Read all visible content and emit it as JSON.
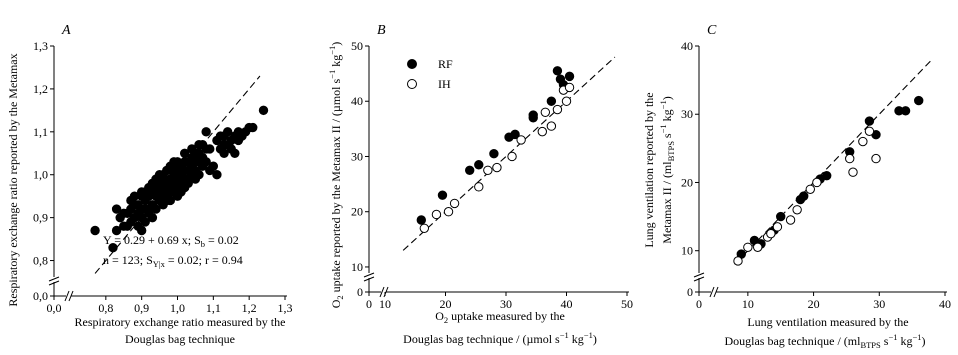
{
  "chart_data": [
    {
      "type": "scatter",
      "panel": "A",
      "xlabel": [
        "Respiratory exchange ratio measured by the",
        "Douglas bag technique"
      ],
      "ylabel": "Respiratory exchange ratio reported by the Metamax",
      "xlim": [
        0.7,
        1.3
      ],
      "ylim": [
        0.75,
        1.3
      ],
      "xticks": [
        0.8,
        0.9,
        1.0,
        1.1,
        1.2,
        1.3
      ],
      "yticks": [
        0.8,
        0.9,
        1.0,
        1.1,
        1.2,
        1.3
      ],
      "xtick_labels": [
        "0,8",
        "0,9",
        "1,0",
        "1,1",
        "1,2",
        "1,3"
      ],
      "ytick_labels": [
        "0,8",
        "0,9",
        "1,0",
        "1,1",
        "1,2",
        "1,3"
      ],
      "origin_x_label": "0,0",
      "origin_y_label": "0,0",
      "axis_break": true,
      "identity_line": [
        [
          0.77,
          0.77
        ],
        [
          1.23,
          1.23
        ]
      ],
      "annotation": {
        "line1": {
          "pre": "Y = 0.29 + 0.69 x; S",
          "sub": "b",
          "post": " = 0.02"
        },
        "line2": {
          "pre": "n = 123; S",
          "sub": "Y|x",
          "post": " = 0.02; r = 0.94"
        }
      },
      "series": [
        {
          "marker": "filled",
          "points": [
            [
              0.77,
              0.87
            ],
            [
              0.82,
              0.83
            ],
            [
              0.83,
              0.87
            ],
            [
              0.83,
              0.92
            ],
            [
              0.84,
              0.9
            ],
            [
              0.85,
              0.91
            ],
            [
              0.86,
              0.91
            ],
            [
              0.86,
              0.88
            ],
            [
              0.87,
              0.89
            ],
            [
              0.87,
              0.92
            ],
            [
              0.88,
              0.9
            ],
            [
              0.88,
              0.93
            ],
            [
              0.89,
              0.88
            ],
            [
              0.89,
              0.91
            ],
            [
              0.89,
              0.93
            ],
            [
              0.9,
              0.87
            ],
            [
              0.9,
              0.9
            ],
            [
              0.9,
              0.92
            ],
            [
              0.9,
              0.95
            ],
            [
              0.91,
              0.89
            ],
            [
              0.91,
              0.94
            ],
            [
              0.91,
              0.96
            ],
            [
              0.92,
              0.92
            ],
            [
              0.92,
              0.95
            ],
            [
              0.92,
              0.91
            ],
            [
              0.93,
              0.93
            ],
            [
              0.93,
              0.96
            ],
            [
              0.93,
              0.98
            ],
            [
              0.94,
              0.92
            ],
            [
              0.94,
              0.95
            ],
            [
              0.94,
              0.97
            ],
            [
              0.95,
              0.94
            ],
            [
              0.95,
              0.96
            ],
            [
              0.95,
              1.0
            ],
            [
              0.96,
              0.93
            ],
            [
              0.96,
              0.95
            ],
            [
              0.96,
              0.97
            ],
            [
              0.96,
              0.99
            ],
            [
              0.97,
              0.96
            ],
            [
              0.97,
              0.98
            ],
            [
              0.97,
              1.01
            ],
            [
              0.98,
              0.94
            ],
            [
              0.98,
              0.97
            ],
            [
              0.98,
              0.99
            ],
            [
              0.98,
              1.02
            ],
            [
              0.99,
              0.96
            ],
            [
              0.99,
              0.98
            ],
            [
              0.99,
              1.0
            ],
            [
              0.99,
              1.03
            ],
            [
              1.0,
              0.95
            ],
            [
              1.0,
              0.97
            ],
            [
              1.0,
              0.99
            ],
            [
              1.0,
              1.01
            ],
            [
              1.0,
              1.02
            ],
            [
              1.01,
              0.98
            ],
            [
              1.01,
              1.0
            ],
            [
              1.01,
              1.02
            ],
            [
              1.02,
              0.97
            ],
            [
              1.02,
              0.99
            ],
            [
              1.02,
              1.01
            ],
            [
              1.02,
              1.03
            ],
            [
              1.03,
              0.99
            ],
            [
              1.03,
              1.01
            ],
            [
              1.03,
              1.03
            ],
            [
              1.04,
              1.0
            ],
            [
              1.04,
              1.02
            ],
            [
              1.04,
              1.04
            ],
            [
              1.05,
              1.01
            ],
            [
              1.05,
              1.03
            ],
            [
              1.05,
              1.05
            ],
            [
              1.06,
              1.0
            ],
            [
              1.06,
              1.03
            ],
            [
              1.06,
              1.05
            ],
            [
              1.07,
              1.02
            ],
            [
              1.07,
              1.04
            ],
            [
              1.08,
              1.1
            ],
            [
              1.08,
              1.03
            ],
            [
              1.09,
              1.01
            ],
            [
              1.1,
              1.02
            ],
            [
              1.11,
              1.0
            ],
            [
              1.12,
              1.06
            ],
            [
              1.12,
              1.09
            ],
            [
              1.13,
              1.07
            ],
            [
              1.13,
              1.05
            ],
            [
              1.14,
              1.07
            ],
            [
              1.14,
              1.1
            ],
            [
              1.15,
              1.06
            ],
            [
              1.15,
              1.08
            ],
            [
              1.16,
              1.05
            ],
            [
              1.16,
              1.09
            ],
            [
              1.17,
              1.08
            ],
            [
              1.17,
              1.1
            ],
            [
              1.18,
              1.09
            ],
            [
              1.19,
              1.1
            ],
            [
              1.2,
              1.11
            ],
            [
              1.21,
              1.11
            ],
            [
              1.24,
              1.15
            ],
            [
              0.85,
              0.88
            ],
            [
              0.88,
              0.95
            ],
            [
              0.92,
              0.97
            ],
            [
              0.95,
              0.98
            ],
            [
              0.97,
              0.94
            ],
            [
              0.99,
              1.01
            ],
            [
              1.0,
              1.03
            ],
            [
              1.01,
              0.96
            ],
            [
              1.03,
              0.98
            ],
            [
              1.05,
              0.99
            ],
            [
              1.06,
              1.07
            ],
            [
              1.08,
              1.06
            ],
            [
              0.94,
              0.99
            ],
            [
              0.96,
              1.0
            ],
            [
              0.91,
              0.92
            ],
            [
              0.93,
              0.9
            ],
            [
              1.02,
              1.05
            ],
            [
              1.04,
              1.06
            ],
            [
              0.98,
              0.96
            ],
            [
              1.0,
              0.98
            ],
            [
              1.11,
              1.08
            ],
            [
              1.13,
              1.09
            ],
            [
              0.9,
              0.96
            ],
            [
              0.87,
              0.94
            ],
            [
              1.07,
              1.07
            ],
            [
              1.09,
              1.06
            ]
          ]
        }
      ]
    },
    {
      "type": "scatter",
      "panel": "B",
      "xlabel": {
        "line1": {
          "pre": "O",
          "sub": "2",
          "post": " uptake measured by the"
        },
        "line2": {
          "pre": "Douglas bag technique / (µmol s",
          "sup1": "−1",
          "mid": " kg",
          "sup2": "−1",
          "post": ")"
        }
      },
      "ylabel": {
        "pre": "O",
        "sub": "2",
        "post": " uptake reported by the Metamax II / (µmol s",
        "sup1": "−1",
        "mid": " kg",
        "sup2": "−1",
        "end": ")"
      },
      "xlim": [
        10,
        50
      ],
      "ylim": [
        8,
        50
      ],
      "xticks": [
        10,
        20,
        30,
        40,
        50
      ],
      "yticks": [
        10,
        20,
        30,
        40,
        50
      ],
      "xtick_labels": [
        "10",
        "20",
        "30",
        "40",
        "50"
      ],
      "ytick_labels": [
        "10",
        "20",
        "30",
        "40",
        "50"
      ],
      "origin_x_label": "0",
      "origin_y_label": "0",
      "axis_break": true,
      "identity_line": [
        [
          13,
          13
        ],
        [
          48,
          48
        ]
      ],
      "series": [
        {
          "name": "RF",
          "marker": "filled",
          "points": [
            [
              16,
              18.5
            ],
            [
              19.5,
              23
            ],
            [
              24,
              27.5
            ],
            [
              25.5,
              28.5
            ],
            [
              28,
              30.5
            ],
            [
              30.5,
              33.5
            ],
            [
              31.5,
              34
            ],
            [
              34.5,
              37
            ],
            [
              37.5,
              40
            ],
            [
              38.5,
              45.5
            ],
            [
              39,
              44
            ],
            [
              39.5,
              43
            ],
            [
              40.5,
              44.5
            ],
            [
              34.5,
              37.5
            ],
            [
              39.8,
              42.5
            ]
          ]
        },
        {
          "name": "IH",
          "marker": "open",
          "points": [
            [
              16.5,
              17
            ],
            [
              18.5,
              19.5
            ],
            [
              20.5,
              20
            ],
            [
              21.5,
              21.5
            ],
            [
              25.5,
              24.5
            ],
            [
              27,
              27.5
            ],
            [
              28.5,
              28
            ],
            [
              31,
              30
            ],
            [
              32.5,
              33
            ],
            [
              36,
              34.5
            ],
            [
              36.5,
              38
            ],
            [
              37.5,
              35.5
            ],
            [
              39.5,
              42
            ],
            [
              40,
              40
            ],
            [
              40.5,
              42.5
            ],
            [
              38.5,
              38.5
            ]
          ]
        }
      ]
    },
    {
      "type": "scatter",
      "panel": "C",
      "xlabel": {
        "line1": "Lung ventilation measured by the",
        "line2": {
          "pre": "Douglas bag technique / (ml",
          "sub": "BTPS",
          "post": " s",
          "sup1": "−1",
          "mid": " kg",
          "sup2": "−1",
          "end": ")"
        }
      },
      "ylabel": {
        "line1": "Lung ventilation reported by the",
        "line2": {
          "pre": "Metamax II / (ml",
          "sub": "BTPS",
          "post": " s",
          "sup1": "−1",
          "mid": " kg",
          "sup2": "−1",
          "end": ")"
        }
      },
      "xlim": [
        5,
        40
      ],
      "ylim": [
        6,
        40
      ],
      "xticks": [
        10,
        20,
        30,
        40
      ],
      "yticks": [
        10,
        20,
        30,
        40
      ],
      "xtick_labels": [
        "10",
        "20",
        "30",
        "40"
      ],
      "ytick_labels": [
        "10",
        "20",
        "30",
        "40"
      ],
      "origin_x_label": "0",
      "origin_y_label": "0",
      "axis_break": true,
      "identity_line": [
        [
          8,
          8
        ],
        [
          38,
          38
        ]
      ],
      "series": [
        {
          "marker": "filled",
          "points": [
            [
              9,
              9.5
            ],
            [
              11,
              11.5
            ],
            [
              12,
              11
            ],
            [
              14,
              13
            ],
            [
              15,
              15
            ],
            [
              18,
              17.5
            ],
            [
              18.5,
              18
            ],
            [
              21,
              20.5
            ],
            [
              22,
              21
            ],
            [
              25.5,
              24.5
            ],
            [
              28.5,
              29
            ],
            [
              29.5,
              27
            ],
            [
              33,
              30.5
            ],
            [
              34,
              30.5
            ],
            [
              36,
              32
            ]
          ]
        },
        {
          "marker": "open",
          "points": [
            [
              8.5,
              8.5
            ],
            [
              10,
              10.5
            ],
            [
              11.5,
              10.5
            ],
            [
              13,
              12
            ],
            [
              13.5,
              12.5
            ],
            [
              14.5,
              13.5
            ],
            [
              16.5,
              14.5
            ],
            [
              17.5,
              16
            ],
            [
              19.5,
              19
            ],
            [
              20.5,
              20
            ],
            [
              25.5,
              23.5
            ],
            [
              26,
              21.5
            ],
            [
              27.5,
              26
            ],
            [
              28.5,
              27.5
            ],
            [
              29.5,
              23.5
            ]
          ]
        }
      ]
    }
  ]
}
